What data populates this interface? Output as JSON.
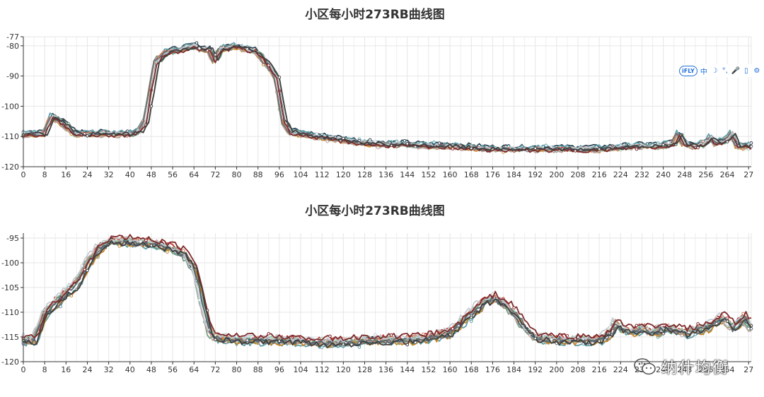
{
  "colors": [
    "#c23531",
    "#2f4554",
    "#61a0a8",
    "#d48265",
    "#91c7ae",
    "#749f83",
    "#ca8622",
    "#bda29a",
    "#6e7074",
    "#546570",
    "#c4ccd3",
    "#7f2a2a",
    "#3f3f3f"
  ],
  "toolbar": {
    "badge": "iFLY",
    "items": [
      {
        "label": "中",
        "icon": "chinese-input-icon"
      },
      {
        "label": "☽",
        "icon": "moon-icon"
      },
      {
        "label": "°,",
        "icon": "punctuation-icon"
      },
      {
        "label": "🎤",
        "icon": "microphone-icon"
      },
      {
        "label": "▯",
        "icon": "keyboard-icon"
      },
      {
        "label": "⚙",
        "icon": "gear-icon"
      }
    ]
  },
  "watermark": {
    "text": "纳什均衡",
    "icon": "wechat-icon"
  },
  "chart_data": [
    {
      "type": "line",
      "title": "小区每小时273RB曲线图",
      "xlabel": "",
      "ylabel": "",
      "xlim": [
        0,
        273
      ],
      "ylim": [
        -120,
        -77
      ],
      "x_ticks": [
        "0",
        "8",
        "16",
        "24",
        "32",
        "40",
        "48",
        "56",
        "64",
        "72",
        "80",
        "88",
        "96",
        "104",
        "112",
        "120",
        "128",
        "136",
        "144",
        "152",
        "160",
        "168",
        "176",
        "184",
        "192",
        "200",
        "208",
        "216",
        "224",
        "232",
        "240",
        "248",
        "256",
        "264",
        "27"
      ],
      "y_ticks": [
        "-77",
        "-80",
        "-90",
        "-100",
        "-110",
        "-120"
      ],
      "grid": true,
      "series_count": 13,
      "series_base": [
        [
          0,
          -109
        ],
        [
          8,
          -109
        ],
        [
          11,
          -103
        ],
        [
          16,
          -106
        ],
        [
          20,
          -109
        ],
        [
          24,
          -109
        ],
        [
          32,
          -109
        ],
        [
          40,
          -109
        ],
        [
          44,
          -108
        ],
        [
          46,
          -105
        ],
        [
          48,
          -95
        ],
        [
          50,
          -85
        ],
        [
          54,
          -82
        ],
        [
          60,
          -81
        ],
        [
          64,
          -80
        ],
        [
          68,
          -81
        ],
        [
          70,
          -81
        ],
        [
          72,
          -85
        ],
        [
          74,
          -81
        ],
        [
          80,
          -80
        ],
        [
          88,
          -82
        ],
        [
          92,
          -86
        ],
        [
          95,
          -90
        ],
        [
          98,
          -105
        ],
        [
          100,
          -108
        ],
        [
          104,
          -109
        ],
        [
          112,
          -110
        ],
        [
          120,
          -111
        ],
        [
          128,
          -112
        ],
        [
          136,
          -112.5
        ],
        [
          144,
          -112.5
        ],
        [
          152,
          -113
        ],
        [
          160,
          -113
        ],
        [
          168,
          -113.5
        ],
        [
          176,
          -114
        ],
        [
          184,
          -114
        ],
        [
          192,
          -114
        ],
        [
          200,
          -114
        ],
        [
          208,
          -114
        ],
        [
          216,
          -114
        ],
        [
          224,
          -113.5
        ],
        [
          232,
          -113
        ],
        [
          240,
          -113
        ],
        [
          244,
          -112
        ],
        [
          246,
          -109
        ],
        [
          248,
          -112
        ],
        [
          252,
          -113
        ],
        [
          256,
          -112
        ],
        [
          258,
          -110
        ],
        [
          260,
          -112
        ],
        [
          264,
          -111
        ],
        [
          266,
          -109
        ],
        [
          268,
          -113
        ],
        [
          273,
          -113
        ]
      ]
    },
    {
      "type": "line",
      "title": "小区每小时273RB曲线图",
      "xlabel": "",
      "ylabel": "",
      "xlim": [
        0,
        273
      ],
      "ylim": [
        -120,
        -94
      ],
      "x_ticks": [
        "0",
        "8",
        "16",
        "24",
        "32",
        "40",
        "48",
        "56",
        "64",
        "72",
        "80",
        "88",
        "96",
        "104",
        "112",
        "120",
        "128",
        "136",
        "144",
        "152",
        "160",
        "168",
        "176",
        "184",
        "192",
        "200",
        "208",
        "216",
        "224",
        "232",
        "240",
        "248",
        "256",
        "264",
        "27"
      ],
      "y_ticks": [
        "-95",
        "-100",
        "-105",
        "-110",
        "-115",
        "-120"
      ],
      "grid": true,
      "series_count": 13,
      "series_base": [
        [
          0,
          -115.5
        ],
        [
          4,
          -115.5
        ],
        [
          6,
          -113
        ],
        [
          8,
          -110
        ],
        [
          12,
          -108
        ],
        [
          16,
          -106
        ],
        [
          20,
          -104
        ],
        [
          24,
          -100
        ],
        [
          28,
          -97
        ],
        [
          32,
          -95.5
        ],
        [
          40,
          -95.5
        ],
        [
          48,
          -96
        ],
        [
          56,
          -97
        ],
        [
          60,
          -98
        ],
        [
          64,
          -101
        ],
        [
          66,
          -105
        ],
        [
          68,
          -110
        ],
        [
          70,
          -114
        ],
        [
          72,
          -115
        ],
        [
          80,
          -115.5
        ],
        [
          96,
          -115.5
        ],
        [
          112,
          -116
        ],
        [
          120,
          -116
        ],
        [
          128,
          -115.5
        ],
        [
          136,
          -115.5
        ],
        [
          144,
          -115.5
        ],
        [
          152,
          -115
        ],
        [
          160,
          -114
        ],
        [
          164,
          -112
        ],
        [
          168,
          -110
        ],
        [
          172,
          -108
        ],
        [
          176,
          -107
        ],
        [
          180,
          -108
        ],
        [
          184,
          -110
        ],
        [
          188,
          -113
        ],
        [
          192,
          -115
        ],
        [
          200,
          -115.5
        ],
        [
          208,
          -115.5
        ],
        [
          216,
          -115.5
        ],
        [
          220,
          -114
        ],
        [
          222,
          -112
        ],
        [
          224,
          -113
        ],
        [
          228,
          -114
        ],
        [
          232,
          -113
        ],
        [
          236,
          -114
        ],
        [
          240,
          -113
        ],
        [
          248,
          -114
        ],
        [
          256,
          -113
        ],
        [
          262,
          -111
        ],
        [
          266,
          -113
        ],
        [
          270,
          -111
        ],
        [
          273,
          -113
        ]
      ]
    }
  ]
}
